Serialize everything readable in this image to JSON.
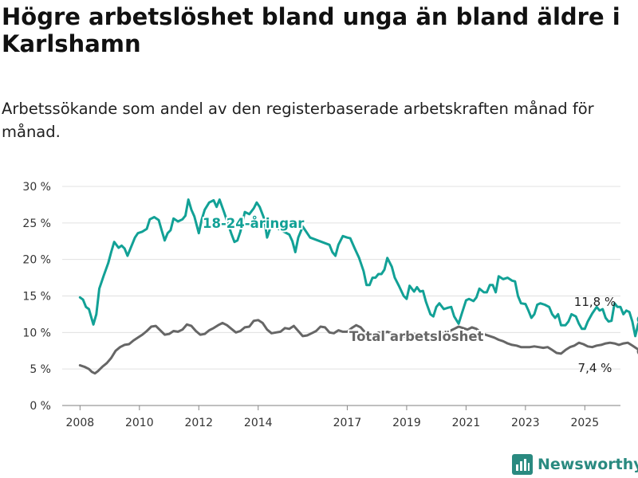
{
  "title": "Högre arbetslöshet bland unga än bland äldre i Karlshamn",
  "subtitle": "Arbetssökande som andel av den registerbaserade arbetskraften månad för månad.",
  "brand": {
    "name": "Newsworthy"
  },
  "colors": {
    "youth": "#12a196",
    "total": "#666666",
    "grid": "#e0e0e0",
    "brand": "#2a8a80"
  },
  "chart_data": {
    "type": "line",
    "y_ticks": [
      0,
      5,
      10,
      15,
      20,
      25,
      30
    ],
    "y_tick_labels": [
      "0 %",
      "5 %",
      "10 %",
      "15 %",
      "20 %",
      "25 %",
      "30 %"
    ],
    "ylim": [
      0,
      30
    ],
    "x_ticks": [
      2008,
      2010,
      2012,
      2014,
      2017,
      2019,
      2021,
      2023,
      2025
    ],
    "x_tick_labels": [
      "2008",
      "2010",
      "2012",
      "2014",
      "2017",
      "2019",
      "2021",
      "2023",
      "2025"
    ],
    "xlim": [
      2007.4,
      2026.2
    ],
    "grid": true,
    "series": [
      {
        "name": "18-24-åringar",
        "end_label": "11,8 %",
        "points": [
          [
            2008.0,
            14.8
          ],
          [
            2008.1,
            14.5
          ],
          [
            2008.2,
            13.5
          ],
          [
            2008.3,
            13.2
          ],
          [
            2008.4,
            11.8
          ],
          [
            2008.45,
            11.1
          ],
          [
            2008.55,
            12.5
          ],
          [
            2008.65,
            16.0
          ],
          [
            2008.8,
            17.8
          ],
          [
            2008.95,
            19.5
          ],
          [
            2009.05,
            21.0
          ],
          [
            2009.15,
            22.4
          ],
          [
            2009.3,
            21.6
          ],
          [
            2009.4,
            21.9
          ],
          [
            2009.5,
            21.5
          ],
          [
            2009.6,
            20.5
          ],
          [
            2009.7,
            21.5
          ],
          [
            2009.85,
            23.0
          ],
          [
            2009.95,
            23.6
          ],
          [
            2010.1,
            23.8
          ],
          [
            2010.25,
            24.2
          ],
          [
            2010.35,
            25.5
          ],
          [
            2010.5,
            25.8
          ],
          [
            2010.65,
            25.4
          ],
          [
            2010.75,
            24.0
          ],
          [
            2010.85,
            22.6
          ],
          [
            2010.95,
            23.6
          ],
          [
            2011.05,
            24.0
          ],
          [
            2011.15,
            25.6
          ],
          [
            2011.3,
            25.2
          ],
          [
            2011.45,
            25.5
          ],
          [
            2011.55,
            26.0
          ],
          [
            2011.65,
            28.2
          ],
          [
            2011.75,
            26.8
          ],
          [
            2011.85,
            25.9
          ],
          [
            2012.0,
            23.6
          ],
          [
            2012.1,
            25.5
          ],
          [
            2012.2,
            26.8
          ],
          [
            2012.35,
            27.8
          ],
          [
            2012.5,
            28.1
          ],
          [
            2012.6,
            27.2
          ],
          [
            2012.7,
            28.2
          ],
          [
            2012.85,
            26.5
          ],
          [
            2013.1,
            23.5
          ],
          [
            2013.2,
            22.4
          ],
          [
            2013.3,
            22.6
          ],
          [
            2013.4,
            23.8
          ],
          [
            2013.55,
            26.5
          ],
          [
            2013.7,
            26.2
          ],
          [
            2013.85,
            27.0
          ],
          [
            2013.95,
            27.8
          ],
          [
            2014.05,
            27.2
          ],
          [
            2014.2,
            25.6
          ],
          [
            2014.3,
            23.0
          ],
          [
            2014.4,
            24.2
          ],
          [
            2014.55,
            24.5
          ],
          [
            2015.05,
            23.4
          ],
          [
            2015.15,
            22.5
          ],
          [
            2015.25,
            21.0
          ],
          [
            2015.35,
            23.0
          ],
          [
            2015.5,
            24.5
          ],
          [
            2015.65,
            23.6
          ],
          [
            2015.75,
            23.0
          ],
          [
            2016.4,
            22.0
          ],
          [
            2016.5,
            21.0
          ],
          [
            2016.6,
            20.5
          ],
          [
            2016.7,
            22.0
          ],
          [
            2016.85,
            23.2
          ],
          [
            2017.0,
            23.0
          ],
          [
            2017.1,
            22.9
          ],
          [
            2017.25,
            21.5
          ],
          [
            2017.4,
            20.2
          ],
          [
            2017.55,
            18.4
          ],
          [
            2017.65,
            16.5
          ],
          [
            2017.75,
            16.5
          ],
          [
            2017.85,
            17.5
          ],
          [
            2017.95,
            17.5
          ],
          [
            2018.05,
            18.0
          ],
          [
            2018.15,
            18.0
          ],
          [
            2018.25,
            18.6
          ],
          [
            2018.35,
            20.2
          ],
          [
            2018.5,
            19.0
          ],
          [
            2018.6,
            17.5
          ],
          [
            2018.75,
            16.3
          ],
          [
            2018.9,
            15.0
          ],
          [
            2019.0,
            14.6
          ],
          [
            2019.1,
            16.4
          ],
          [
            2019.25,
            15.6
          ],
          [
            2019.35,
            16.2
          ],
          [
            2019.45,
            15.6
          ],
          [
            2019.55,
            15.7
          ],
          [
            2019.65,
            14.2
          ],
          [
            2019.8,
            12.5
          ],
          [
            2019.9,
            12.2
          ],
          [
            2020.0,
            13.5
          ],
          [
            2020.1,
            14.0
          ],
          [
            2020.25,
            13.2
          ],
          [
            2020.4,
            13.4
          ],
          [
            2020.5,
            13.5
          ],
          [
            2020.6,
            12.2
          ],
          [
            2020.75,
            11.2
          ],
          [
            2020.85,
            12.5
          ],
          [
            2021.0,
            14.4
          ],
          [
            2021.1,
            14.6
          ],
          [
            2021.25,
            14.3
          ],
          [
            2021.35,
            14.8
          ],
          [
            2021.45,
            16.0
          ],
          [
            2021.6,
            15.5
          ],
          [
            2021.7,
            15.5
          ],
          [
            2021.8,
            16.5
          ],
          [
            2021.9,
            16.5
          ],
          [
            2022.0,
            15.5
          ],
          [
            2022.1,
            17.7
          ],
          [
            2022.25,
            17.3
          ],
          [
            2022.4,
            17.5
          ],
          [
            2022.55,
            17.1
          ],
          [
            2022.65,
            17.0
          ],
          [
            2022.75,
            15.0
          ],
          [
            2022.85,
            14.0
          ],
          [
            2023.0,
            13.9
          ],
          [
            2023.1,
            13.0
          ],
          [
            2023.2,
            12.0
          ],
          [
            2023.3,
            12.5
          ],
          [
            2023.4,
            13.8
          ],
          [
            2023.5,
            14.0
          ],
          [
            2023.65,
            13.8
          ],
          [
            2023.8,
            13.5
          ],
          [
            2023.9,
            12.5
          ],
          [
            2024.0,
            12.0
          ],
          [
            2024.1,
            12.5
          ],
          [
            2024.2,
            11.0
          ],
          [
            2024.35,
            11.0
          ],
          [
            2024.45,
            11.5
          ],
          [
            2024.55,
            12.5
          ],
          [
            2024.7,
            12.2
          ],
          [
            2024.8,
            11.2
          ],
          [
            2024.9,
            10.5
          ],
          [
            2025.0,
            10.5
          ],
          [
            2025.1,
            11.5
          ],
          [
            2025.25,
            12.6
          ],
          [
            2025.4,
            13.5
          ],
          [
            2025.5,
            13.0
          ],
          [
            2025.6,
            13.2
          ],
          [
            2025.7,
            12.0
          ],
          [
            2025.8,
            11.5
          ],
          [
            2025.9,
            11.6
          ],
          [
            2026.0,
            14.0
          ],
          [
            2026.1,
            13.5
          ],
          [
            2026.2,
            13.5
          ],
          [
            2026.3,
            12.5
          ],
          [
            2026.4,
            13.0
          ],
          [
            2026.5,
            12.8
          ],
          [
            2026.6,
            11.5
          ],
          [
            2026.7,
            9.5
          ],
          [
            2026.8,
            11.2
          ],
          [
            2026.9,
            11.8
          ]
        ]
      },
      {
        "name": "Total arbetslöshet",
        "end_label": "7,4 %",
        "points": [
          [
            2008.0,
            5.5
          ],
          [
            2008.15,
            5.3
          ],
          [
            2008.3,
            5.0
          ],
          [
            2008.4,
            4.6
          ],
          [
            2008.5,
            4.4
          ],
          [
            2008.6,
            4.7
          ],
          [
            2008.75,
            5.3
          ],
          [
            2008.9,
            5.8
          ],
          [
            2009.05,
            6.5
          ],
          [
            2009.2,
            7.5
          ],
          [
            2009.35,
            8.0
          ],
          [
            2009.5,
            8.3
          ],
          [
            2009.65,
            8.4
          ],
          [
            2009.8,
            8.9
          ],
          [
            2009.95,
            9.3
          ],
          [
            2010.1,
            9.7
          ],
          [
            2010.25,
            10.2
          ],
          [
            2010.4,
            10.8
          ],
          [
            2010.55,
            10.9
          ],
          [
            2010.7,
            10.3
          ],
          [
            2010.85,
            9.7
          ],
          [
            2011.0,
            9.8
          ],
          [
            2011.15,
            10.2
          ],
          [
            2011.3,
            10.1
          ],
          [
            2011.45,
            10.4
          ],
          [
            2011.6,
            11.1
          ],
          [
            2011.75,
            10.9
          ],
          [
            2011.9,
            10.2
          ],
          [
            2012.05,
            9.7
          ],
          [
            2012.2,
            9.8
          ],
          [
            2012.35,
            10.3
          ],
          [
            2012.5,
            10.6
          ],
          [
            2012.65,
            11.0
          ],
          [
            2012.8,
            11.3
          ],
          [
            2012.95,
            11.0
          ],
          [
            2013.1,
            10.5
          ],
          [
            2013.25,
            10.0
          ],
          [
            2013.4,
            10.2
          ],
          [
            2013.55,
            10.7
          ],
          [
            2013.7,
            10.8
          ],
          [
            2013.85,
            11.6
          ],
          [
            2014.0,
            11.7
          ],
          [
            2014.15,
            11.3
          ],
          [
            2014.3,
            10.4
          ],
          [
            2014.45,
            9.9
          ],
          [
            2014.6,
            10.0
          ],
          [
            2014.75,
            10.1
          ],
          [
            2014.9,
            10.6
          ],
          [
            2015.05,
            10.5
          ],
          [
            2015.2,
            10.9
          ],
          [
            2015.35,
            10.2
          ],
          [
            2015.5,
            9.5
          ],
          [
            2015.65,
            9.6
          ],
          [
            2015.8,
            9.9
          ],
          [
            2015.95,
            10.2
          ],
          [
            2016.1,
            10.8
          ],
          [
            2016.25,
            10.7
          ],
          [
            2016.4,
            10.0
          ],
          [
            2016.55,
            9.9
          ],
          [
            2016.7,
            10.3
          ],
          [
            2016.85,
            10.1
          ],
          [
            2017.0,
            10.1
          ],
          [
            2017.15,
            10.6
          ],
          [
            2017.3,
            11.0
          ],
          [
            2017.45,
            10.7
          ],
          [
            2017.6,
            10.0
          ],
          [
            2017.75,
            9.6
          ],
          [
            2017.9,
            9.7
          ],
          [
            2018.05,
            10.0
          ],
          [
            2018.2,
            9.9
          ],
          [
            2018.35,
            10.1
          ],
          [
            2018.5,
            9.9
          ],
          [
            2018.65,
            9.6
          ],
          [
            2018.8,
            9.4
          ],
          [
            2018.95,
            9.5
          ],
          [
            2019.1,
            9.7
          ],
          [
            2019.25,
            9.8
          ],
          [
            2019.4,
            9.6
          ],
          [
            2019.55,
            9.4
          ],
          [
            2019.7,
            9.5
          ],
          [
            2019.85,
            9.6
          ],
          [
            2020.0,
            9.8
          ],
          [
            2020.15,
            9.9
          ],
          [
            2020.3,
            10.0
          ],
          [
            2020.45,
            10.2
          ],
          [
            2020.6,
            10.5
          ],
          [
            2020.75,
            10.8
          ],
          [
            2020.9,
            10.6
          ],
          [
            2021.05,
            10.4
          ],
          [
            2021.2,
            10.7
          ],
          [
            2021.35,
            10.5
          ],
          [
            2021.5,
            10.0
          ],
          [
            2021.65,
            9.7
          ],
          [
            2021.8,
            9.5
          ],
          [
            2021.95,
            9.3
          ],
          [
            2022.1,
            9.0
          ],
          [
            2022.25,
            8.8
          ],
          [
            2022.4,
            8.5
          ],
          [
            2022.55,
            8.3
          ],
          [
            2022.7,
            8.2
          ],
          [
            2022.85,
            8.0
          ],
          [
            2023.0,
            8.0
          ],
          [
            2023.15,
            8.0
          ],
          [
            2023.3,
            8.1
          ],
          [
            2023.45,
            8.0
          ],
          [
            2023.6,
            7.9
          ],
          [
            2023.75,
            8.0
          ],
          [
            2023.9,
            7.6
          ],
          [
            2024.05,
            7.2
          ],
          [
            2024.2,
            7.1
          ],
          [
            2024.35,
            7.6
          ],
          [
            2024.5,
            8.0
          ],
          [
            2024.65,
            8.2
          ],
          [
            2024.8,
            8.6
          ],
          [
            2024.95,
            8.4
          ],
          [
            2025.1,
            8.1
          ],
          [
            2025.25,
            8.0
          ],
          [
            2025.4,
            8.2
          ],
          [
            2025.55,
            8.3
          ],
          [
            2025.7,
            8.5
          ],
          [
            2025.85,
            8.6
          ],
          [
            2026.0,
            8.5
          ],
          [
            2026.15,
            8.3
          ],
          [
            2026.3,
            8.5
          ],
          [
            2026.45,
            8.6
          ],
          [
            2026.6,
            8.2
          ],
          [
            2026.75,
            7.8
          ],
          [
            2026.9,
            7.4
          ]
        ]
      }
    ]
  }
}
